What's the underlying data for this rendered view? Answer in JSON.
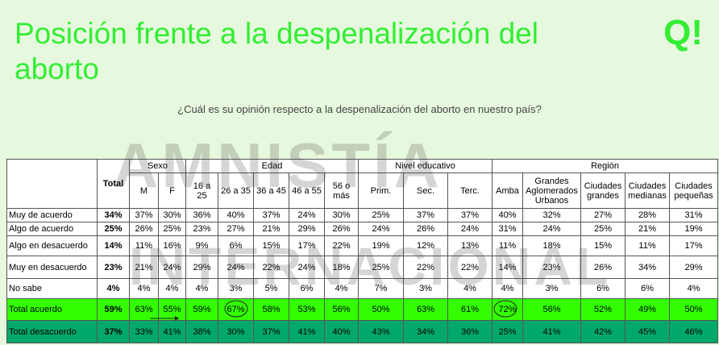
{
  "header": {
    "title": "Posición frente a la despenalización del aborto",
    "logo": "Q!",
    "question": "¿Cuál es su opinión respecto a la despenalización del aborto en nuestro país?"
  },
  "watermark": [
    "AMNISTÍA",
    "INTERNACIONAL"
  ],
  "table": {
    "total_header": "Total",
    "groups": [
      {
        "name": "Sexo",
        "columns": [
          "M",
          "F"
        ]
      },
      {
        "name": "Edad",
        "columns": [
          "16 a 25",
          "26 a 35",
          "36 a 45",
          "46 a 55",
          "56 o más"
        ]
      },
      {
        "name": "Nivel educativo",
        "columns": [
          "Prim.",
          "Sec.",
          "Terc."
        ]
      },
      {
        "name": "Región",
        "columns": [
          "Amba",
          "Grandes Aglomerados Urbanos",
          "Ciudades grandes",
          "Ciudades medianas",
          "Ciudades pequeñas"
        ]
      }
    ],
    "rows": [
      [
        "Muy de acuerdo",
        "34%",
        "37%",
        "30%",
        "36%",
        "40%",
        "37%",
        "24%",
        "30%",
        "25%",
        "37%",
        "37%",
        "40%",
        "32%",
        "27%",
        "28%",
        "31%"
      ],
      [
        "Algo de acuerdo",
        "25%",
        "26%",
        "25%",
        "23%",
        "27%",
        "21%",
        "29%",
        "26%",
        "24%",
        "26%",
        "24%",
        "31%",
        "24%",
        "25%",
        "21%",
        "19%"
      ],
      [
        "Algo en desacuerdo",
        "14%",
        "11%",
        "16%",
        "9%",
        "6%",
        "15%",
        "17%",
        "22%",
        "19%",
        "12%",
        "13%",
        "11%",
        "18%",
        "15%",
        "11%",
        "17%"
      ],
      [
        "Muy en desacuerdo",
        "23%",
        "21%",
        "24%",
        "29%",
        "24%",
        "22%",
        "24%",
        "18%",
        "25%",
        "22%",
        "22%",
        "14%",
        "23%",
        "26%",
        "34%",
        "29%"
      ],
      [
        "No sabe",
        "4%",
        "4%",
        "4%",
        "4%",
        "3%",
        "5%",
        "6%",
        "4%",
        "7%",
        "3%",
        "4%",
        "4%",
        "3%",
        "6%",
        "6%",
        "4%"
      ],
      [
        "Total acuerdo",
        "59%",
        "63%",
        "55%",
        "59%",
        "67%",
        "58%",
        "53%",
        "56%",
        "50%",
        "63%",
        "61%",
        "72%",
        "56%",
        "52%",
        "49%",
        "50%"
      ],
      [
        "Total desacuerdo",
        "37%",
        "33%",
        "41%",
        "38%",
        "30%",
        "37%",
        "41%",
        "40%",
        "43%",
        "34%",
        "36%",
        "25%",
        "41%",
        "42%",
        "45%",
        "46%"
      ]
    ]
  }
}
